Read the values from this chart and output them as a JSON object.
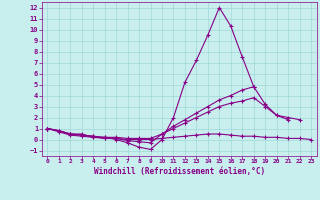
{
  "xlabel": "Windchill (Refroidissement éolien,°C)",
  "bg_color": "#c8eeee",
  "grid_color": "#a0d8d8",
  "line_color": "#880088",
  "xlim": [
    -0.5,
    23.5
  ],
  "ylim": [
    -1.5,
    12.5
  ],
  "xticks": [
    0,
    1,
    2,
    3,
    4,
    5,
    6,
    7,
    8,
    9,
    10,
    11,
    12,
    13,
    14,
    15,
    16,
    17,
    18,
    19,
    20,
    21,
    22,
    23
  ],
  "yticks": [
    -1,
    0,
    1,
    2,
    3,
    4,
    5,
    6,
    7,
    8,
    9,
    10,
    11,
    12
  ],
  "series": [
    {
      "x": [
        0,
        1,
        2,
        3,
        4,
        5,
        6,
        7,
        8,
        9,
        10,
        11,
        12,
        13,
        14,
        15,
        16,
        17,
        18
      ],
      "y": [
        1.0,
        0.8,
        0.5,
        0.5,
        0.2,
        0.2,
        0.0,
        -0.3,
        -0.7,
        -0.9,
        0.0,
        2.0,
        5.2,
        7.2,
        9.5,
        12.0,
        10.3,
        7.5,
        4.8
      ]
    },
    {
      "x": [
        0,
        1,
        2,
        3,
        4,
        5,
        6,
        7,
        8,
        9,
        10,
        11,
        12,
        13,
        14,
        15,
        16,
        17,
        18,
        19,
        20,
        21
      ],
      "y": [
        1.0,
        0.8,
        0.5,
        0.4,
        0.3,
        0.1,
        0.1,
        -0.1,
        -0.2,
        -0.3,
        0.5,
        1.2,
        1.8,
        2.4,
        3.0,
        3.6,
        4.0,
        4.5,
        4.8,
        3.2,
        2.2,
        1.8
      ]
    },
    {
      "x": [
        0,
        1,
        2,
        3,
        4,
        5,
        6,
        7,
        8,
        9,
        10,
        11,
        12,
        13,
        14,
        15,
        16,
        17,
        18,
        19,
        20,
        21,
        22
      ],
      "y": [
        1.0,
        0.8,
        0.5,
        0.4,
        0.3,
        0.2,
        0.2,
        0.1,
        0.1,
        0.1,
        0.5,
        1.0,
        1.5,
        2.0,
        2.5,
        3.0,
        3.3,
        3.5,
        3.8,
        3.0,
        2.2,
        2.0,
        1.8
      ]
    },
    {
      "x": [
        0,
        1,
        2,
        3,
        4,
        5,
        6,
        7,
        8,
        9,
        10,
        11,
        12,
        13,
        14,
        15,
        16,
        17,
        18,
        19,
        20,
        21,
        22,
        23
      ],
      "y": [
        1.0,
        0.7,
        0.4,
        0.3,
        0.2,
        0.1,
        0.1,
        0.0,
        0.0,
        0.0,
        0.1,
        0.2,
        0.3,
        0.4,
        0.5,
        0.5,
        0.4,
        0.3,
        0.3,
        0.2,
        0.2,
        0.1,
        0.1,
        0.0
      ]
    }
  ]
}
